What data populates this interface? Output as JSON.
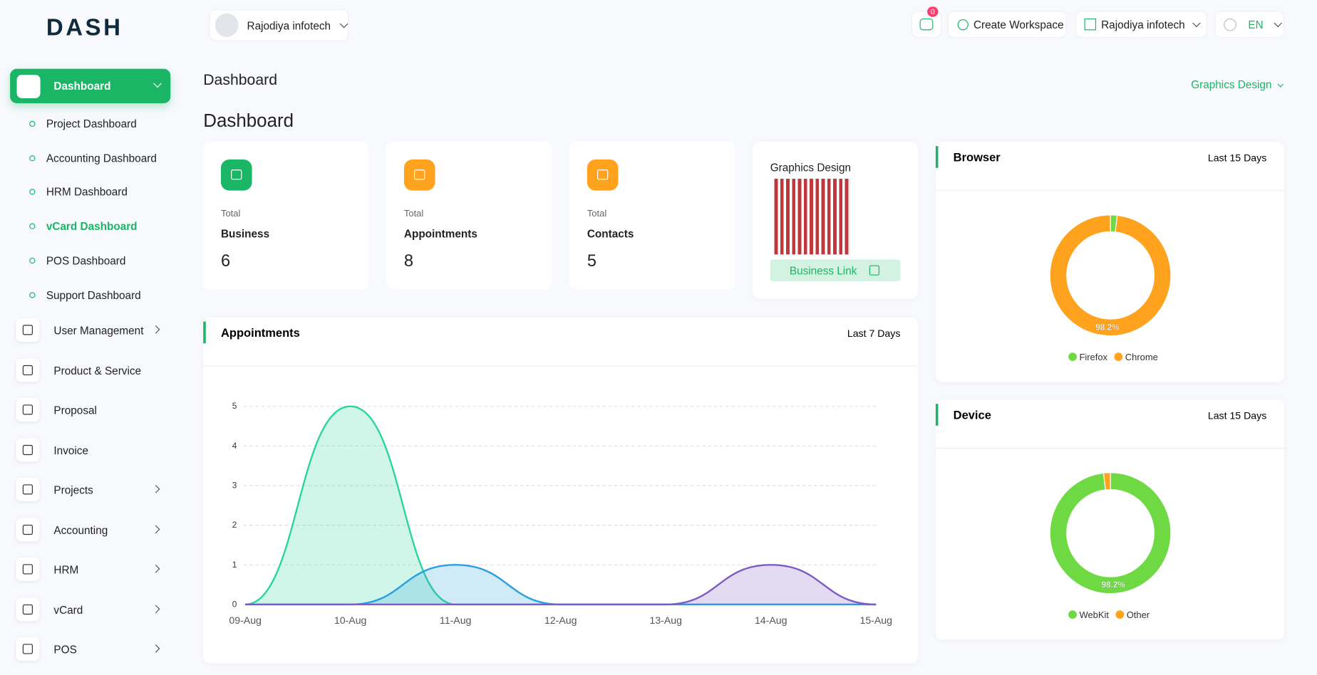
{
  "brand": "DASH",
  "header": {
    "workspace": "Rajodiya infotech",
    "notifications": 0,
    "create_workspace": "Create Workspace",
    "company": "Rajodiya infotech",
    "language": "EN"
  },
  "sidebar": {
    "active": "Dashboard",
    "submenu": [
      "Project Dashboard",
      "Accounting Dashboard",
      "HRM Dashboard",
      "vCard Dashboard",
      "POS Dashboard",
      "Support Dashboard"
    ],
    "submenu_active": 3,
    "menu": [
      {
        "label": "User Management",
        "expandable": true
      },
      {
        "label": "Product & Service",
        "expandable": false
      },
      {
        "label": "Proposal",
        "expandable": false
      },
      {
        "label": "Invoice",
        "expandable": false
      },
      {
        "label": "Projects",
        "expandable": true
      },
      {
        "label": "Accounting",
        "expandable": true
      },
      {
        "label": "HRM",
        "expandable": true
      },
      {
        "label": "vCard",
        "expandable": true
      },
      {
        "label": "POS",
        "expandable": true
      }
    ]
  },
  "page": {
    "breadcrumb": "Dashboard",
    "title": "Dashboard",
    "filter": "Graphics Design"
  },
  "stats": [
    {
      "label": "Total",
      "name": "Business",
      "value": 6,
      "color": "#1bb566"
    },
    {
      "label": "Total",
      "name": "Appointments",
      "value": 8,
      "color": "#ffa21d"
    },
    {
      "label": "Total",
      "name": "Contacts",
      "value": 5,
      "color": "#ffa21d"
    }
  ],
  "business_card": {
    "title": "Graphics Design",
    "button": "Business Link"
  },
  "chart_data": [
    {
      "type": "area",
      "title": "Appointments",
      "period": "Last 7 Days",
      "categories": [
        "09-Aug",
        "10-Aug",
        "11-Aug",
        "12-Aug",
        "13-Aug",
        "14-Aug",
        "15-Aug"
      ],
      "series": [
        {
          "color": "#2ad4a0",
          "values": [
            0,
            5,
            0,
            0,
            0,
            0,
            0
          ]
        },
        {
          "color": "#2a9fe0",
          "values": [
            0,
            0,
            1,
            0,
            0,
            0,
            0
          ]
        },
        {
          "color": "#7e5bc6",
          "values": [
            0,
            0,
            0,
            0,
            0,
            1,
            0
          ]
        }
      ],
      "ylim": [
        0,
        5
      ],
      "yticks": [
        0,
        1,
        2,
        3,
        4,
        5
      ],
      "grid": true
    },
    {
      "type": "donut",
      "title": "Browser",
      "period": "Last 15 Days",
      "categories": [
        "Firefox",
        "Chrome"
      ],
      "values": [
        1.8,
        98.2
      ],
      "value_labels": [
        null,
        "98.2%"
      ],
      "colors": [
        "#6fd943",
        "#ffa21d"
      ]
    },
    {
      "type": "donut",
      "title": "Device",
      "period": "Last 15 Days",
      "categories": [
        "WebKit",
        "Other"
      ],
      "values": [
        98.2,
        1.8
      ],
      "value_labels": [
        "98.2%",
        null
      ],
      "colors": [
        "#6fd943",
        "#ffa21d"
      ]
    }
  ]
}
